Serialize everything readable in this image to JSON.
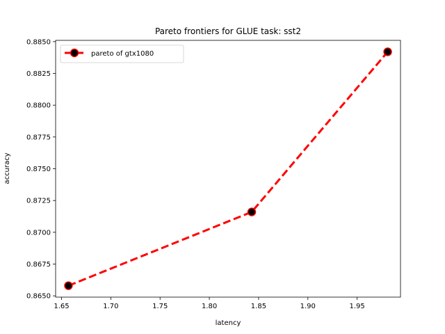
{
  "chart_data": {
    "type": "line",
    "title": "Pareto frontiers for GLUE task: sst2",
    "xlabel": "latency",
    "ylabel": "accuracy",
    "xlim": [
      1.644,
      1.994
    ],
    "ylim": [
      0.8649,
      0.8851
    ],
    "xticks": [
      1.65,
      1.7,
      1.75,
      1.8,
      1.85,
      1.9,
      1.95
    ],
    "xtick_labels": [
      "1.65",
      "1.70",
      "1.75",
      "1.80",
      "1.85",
      "1.90",
      "1.95"
    ],
    "yticks": [
      0.865,
      0.8675,
      0.87,
      0.8725,
      0.875,
      0.8775,
      0.88,
      0.8825,
      0.885
    ],
    "ytick_labels": [
      "0.8650",
      "0.8675",
      "0.8700",
      "0.8725",
      "0.8750",
      "0.8775",
      "0.8800",
      "0.8825",
      "0.8850"
    ],
    "grid": false,
    "legend_position": "top-left",
    "series": [
      {
        "name": "pareto of gtx1080",
        "line_color": "#ff0000",
        "line_style": "dashed",
        "marker": "circle",
        "marker_face": "#000000",
        "marker_edge": "#ff0000",
        "x": [
          1.657,
          1.843,
          1.981
        ],
        "y": [
          0.8658,
          0.8716,
          0.8842
        ]
      }
    ]
  }
}
